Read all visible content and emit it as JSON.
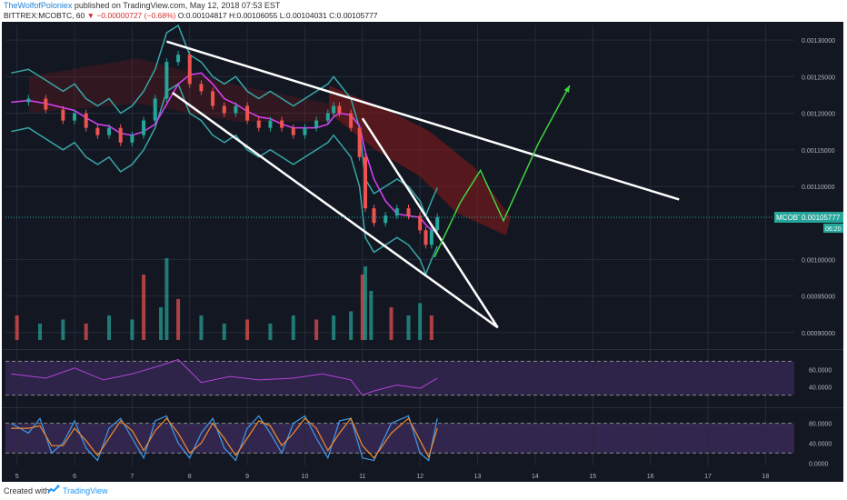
{
  "header": {
    "user": "TheWolfofPoloniex",
    "published": "published on TradingView.com, May 12, 2018 07:53 EST",
    "symbol_info": "BITTREX:MCOBTC, 60",
    "change": "▼ −0.00000727 (−0.68%)",
    "ohlc": "O:0.00104817 H:0.00106055 L:0.00104031 C:0.00105777"
  },
  "footer": {
    "created_with": "Created with",
    "brand": "TradingView"
  },
  "colors": {
    "background": "#131722",
    "grid": "#262b3a",
    "up": "#26a69a",
    "down": "#ef5350",
    "bollinger": "#37a6a6",
    "ma": "#e040fb",
    "trendline": "#ffffff",
    "projection": "#3ed63e",
    "cloud": "#8b1a1a",
    "panel": "#3b2a5a"
  },
  "chart_data": [
    {
      "type": "candlestick",
      "title": "BITTREX:MCOBTC, 60",
      "symbol_tag": "MCOBTC",
      "last_price": "0.00105777",
      "countdown": "06:20",
      "x_ticks": [
        "5",
        "6",
        "7",
        "8",
        "9",
        "10",
        "11",
        "12",
        "13",
        "14",
        "15",
        "16",
        "17",
        "18"
      ],
      "y_ticks": [
        "0.00130000",
        "0.00125000",
        "0.00120000",
        "0.00115000",
        "0.00110000",
        "0.00100000",
        "0.00095000",
        "0.00090000"
      ],
      "ylim": [
        0.00088,
        0.00132
      ],
      "xlim": [
        4.8,
        18.5
      ],
      "price_series": [
        [
          4.9,
          0.001215
        ],
        [
          5.2,
          0.00122
        ],
        [
          5.5,
          0.001205
        ],
        [
          5.8,
          0.00119
        ],
        [
          6.0,
          0.0012
        ],
        [
          6.2,
          0.00118
        ],
        [
          6.4,
          0.00117
        ],
        [
          6.6,
          0.00118
        ],
        [
          6.8,
          0.00116
        ],
        [
          7.0,
          0.00117
        ],
        [
          7.2,
          0.00119
        ],
        [
          7.4,
          0.00122
        ],
        [
          7.6,
          0.00127
        ],
        [
          7.8,
          0.00128
        ],
        [
          8.0,
          0.00124
        ],
        [
          8.2,
          0.00123
        ],
        [
          8.4,
          0.00121
        ],
        [
          8.6,
          0.0012
        ],
        [
          8.8,
          0.00121
        ],
        [
          9.0,
          0.00119
        ],
        [
          9.2,
          0.00118
        ],
        [
          9.4,
          0.00119
        ],
        [
          9.6,
          0.00118
        ],
        [
          9.8,
          0.00117
        ],
        [
          10.0,
          0.00118
        ],
        [
          10.2,
          0.00119
        ],
        [
          10.4,
          0.0012
        ],
        [
          10.5,
          0.00121
        ],
        [
          10.6,
          0.0012
        ],
        [
          10.8,
          0.00118
        ],
        [
          10.95,
          0.00114
        ],
        [
          11.05,
          0.00107
        ],
        [
          11.2,
          0.00105
        ],
        [
          11.4,
          0.00106
        ],
        [
          11.6,
          0.00107
        ],
        [
          11.8,
          0.00106
        ],
        [
          12.0,
          0.00104
        ],
        [
          12.1,
          0.00102
        ],
        [
          12.2,
          0.00104
        ],
        [
          12.3,
          0.001058
        ]
      ],
      "volume_series": [
        [
          5.0,
          0.3
        ],
        [
          5.4,
          0.2
        ],
        [
          5.8,
          0.25
        ],
        [
          6.2,
          0.2
        ],
        [
          6.6,
          0.3
        ],
        [
          7.0,
          0.25
        ],
        [
          7.2,
          0.8
        ],
        [
          7.5,
          0.4
        ],
        [
          7.6,
          1.0
        ],
        [
          7.8,
          0.5
        ],
        [
          8.2,
          0.3
        ],
        [
          8.6,
          0.2
        ],
        [
          9.0,
          0.25
        ],
        [
          9.4,
          0.2
        ],
        [
          9.8,
          0.3
        ],
        [
          10.2,
          0.25
        ],
        [
          10.5,
          0.3
        ],
        [
          10.8,
          0.35
        ],
        [
          11.0,
          0.8
        ],
        [
          11.05,
          0.9
        ],
        [
          11.15,
          0.6
        ],
        [
          11.5,
          0.4
        ],
        [
          11.8,
          0.3
        ],
        [
          12.0,
          0.45
        ],
        [
          12.2,
          0.3
        ]
      ],
      "trendlines": [
        [
          [
            7.6,
            0.001298
          ],
          [
            16.5,
            0.001082
          ]
        ],
        [
          [
            7.7,
            0.001228
          ],
          [
            13.35,
            0.000907
          ]
        ],
        [
          [
            11.0,
            0.001193
          ],
          [
            13.35,
            0.000907
          ]
        ]
      ],
      "projection": [
        [
          12.25,
          0.001003
        ],
        [
          12.7,
          0.001078
        ],
        [
          13.05,
          0.001122
        ],
        [
          13.45,
          0.001053
        ],
        [
          14.05,
          0.001158
        ],
        [
          14.6,
          0.001238
        ]
      ]
    },
    {
      "type": "line",
      "title": "RSI",
      "y_ticks": [
        "60.0000",
        "40.0000"
      ],
      "ylim": [
        20,
        80
      ],
      "bands": [
        70,
        30
      ],
      "series": [
        {
          "values": [
            [
              4.9,
              55
            ],
            [
              5.5,
              50
            ],
            [
              6.0,
              62
            ],
            [
              6.5,
              48
            ],
            [
              7.0,
              55
            ],
            [
              7.5,
              65
            ],
            [
              7.8,
              72
            ],
            [
              8.2,
              45
            ],
            [
              8.7,
              52
            ],
            [
              9.2,
              48
            ],
            [
              9.8,
              50
            ],
            [
              10.3,
              55
            ],
            [
              10.8,
              48
            ],
            [
              11.0,
              30
            ],
            [
              11.2,
              35
            ],
            [
              11.6,
              42
            ],
            [
              12.0,
              38
            ],
            [
              12.3,
              50
            ]
          ]
        }
      ]
    },
    {
      "type": "line",
      "title": "Stochastic RSI",
      "y_ticks": [
        "80.0000",
        "40.0000",
        "0.0000"
      ],
      "ylim": [
        -5,
        105
      ],
      "bands": [
        80,
        20
      ],
      "series": [
        {
          "values": [
            [
              4.9,
              80
            ],
            [
              5.2,
              60
            ],
            [
              5.4,
              90
            ],
            [
              5.6,
              20
            ],
            [
              5.8,
              40
            ],
            [
              6.0,
              85
            ],
            [
              6.2,
              30
            ],
            [
              6.4,
              5
            ],
            [
              6.6,
              70
            ],
            [
              6.8,
              90
            ],
            [
              7.0,
              50
            ],
            [
              7.2,
              10
            ],
            [
              7.4,
              85
            ],
            [
              7.6,
              95
            ],
            [
              7.8,
              40
            ],
            [
              8.0,
              10
            ],
            [
              8.2,
              60
            ],
            [
              8.4,
              90
            ],
            [
              8.6,
              30
            ],
            [
              8.8,
              5
            ],
            [
              9.0,
              70
            ],
            [
              9.2,
              95
            ],
            [
              9.4,
              60
            ],
            [
              9.6,
              20
            ],
            [
              9.8,
              80
            ],
            [
              10.0,
              95
            ],
            [
              10.2,
              50
            ],
            [
              10.4,
              10
            ],
            [
              10.6,
              85
            ],
            [
              10.8,
              90
            ],
            [
              11.0,
              10
            ],
            [
              11.2,
              5
            ],
            [
              11.5,
              80
            ],
            [
              11.8,
              95
            ],
            [
              12.0,
              20
            ],
            [
              12.15,
              5
            ],
            [
              12.3,
              90
            ]
          ]
        },
        {
          "values": [
            [
              4.9,
              70
            ],
            [
              5.2,
              70
            ],
            [
              5.4,
              75
            ],
            [
              5.6,
              35
            ],
            [
              5.8,
              35
            ],
            [
              6.0,
              70
            ],
            [
              6.2,
              45
            ],
            [
              6.4,
              15
            ],
            [
              6.6,
              50
            ],
            [
              6.8,
              85
            ],
            [
              7.0,
              65
            ],
            [
              7.2,
              25
            ],
            [
              7.4,
              65
            ],
            [
              7.6,
              90
            ],
            [
              7.8,
              60
            ],
            [
              8.0,
              20
            ],
            [
              8.2,
              40
            ],
            [
              8.4,
              80
            ],
            [
              8.6,
              50
            ],
            [
              8.8,
              15
            ],
            [
              9.0,
              50
            ],
            [
              9.2,
              85
            ],
            [
              9.4,
              75
            ],
            [
              9.6,
              35
            ],
            [
              9.8,
              60
            ],
            [
              10.0,
              90
            ],
            [
              10.2,
              70
            ],
            [
              10.4,
              25
            ],
            [
              10.6,
              60
            ],
            [
              10.8,
              90
            ],
            [
              11.0,
              35
            ],
            [
              11.2,
              10
            ],
            [
              11.5,
              60
            ],
            [
              11.8,
              90
            ],
            [
              12.0,
              45
            ],
            [
              12.15,
              12
            ],
            [
              12.3,
              70
            ]
          ]
        }
      ]
    }
  ]
}
